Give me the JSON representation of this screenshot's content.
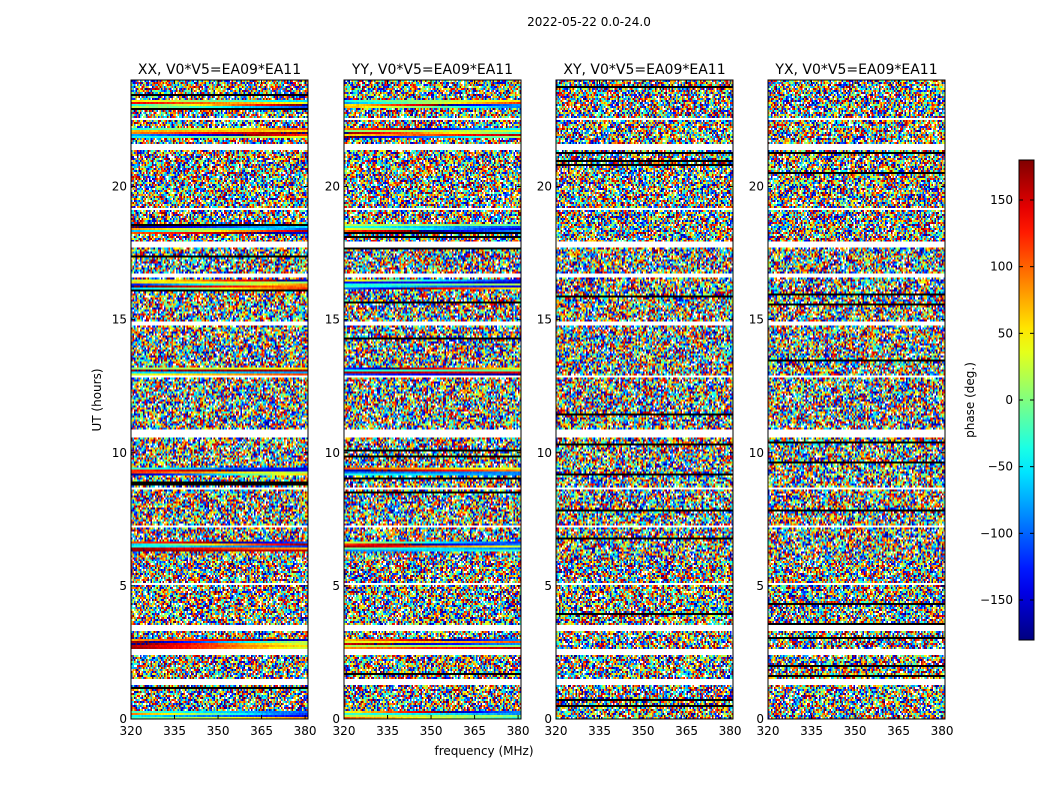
{
  "figure_title": "2022-05-22 0.0-24.0",
  "chart_data": {
    "type": "heatmap",
    "suptitle": "2022-05-22 0.0-24.0",
    "panels": [
      {
        "title": "XX, V0*V5=EA09*EA11",
        "product": "XX"
      },
      {
        "title": "YY, V0*V5=EA09*EA11",
        "product": "YY"
      },
      {
        "title": "XY, V0*V5=EA09*EA11",
        "product": "XY"
      },
      {
        "title": "YX, V0*V5=EA09*EA11",
        "product": "YX"
      }
    ],
    "xlabel": "frequency (MHz)",
    "ylabel": "UT (hours)",
    "xlim": [
      320,
      381
    ],
    "xticks": [
      320,
      335,
      350,
      365,
      380
    ],
    "ylim": [
      0,
      24
    ],
    "yticks": [
      0,
      5,
      10,
      15,
      20
    ],
    "colorbar": {
      "label": "phase (deg.)",
      "colormap": "jet",
      "range": [
        -180,
        180
      ],
      "ticks": [
        -150,
        -100,
        -50,
        0,
        50,
        100,
        150
      ],
      "tick_labels": [
        "−150",
        "−100",
        "−50",
        "0",
        "50",
        "100",
        "150"
      ]
    },
    "value_description": "random phase noise in most time rows; coherent phase gradients across frequency for XX and YY near UT 0.1, 2.8, 6.5, 9.3, 13.0, 16.3, 18.4, 22.0, 23.1",
    "coherent_rows_ut": [
      0.1,
      2.8,
      6.5,
      9.3,
      13.0,
      16.3,
      18.4,
      22.0,
      23.1
    ],
    "flagged_gaps_ut": [
      [
        1.3,
        1.5
      ],
      [
        2.4,
        2.6
      ],
      [
        3.3,
        3.5
      ],
      [
        5.0,
        5.1
      ],
      [
        7.2,
        7.3
      ],
      [
        8.6,
        8.7
      ],
      [
        10.6,
        10.9
      ],
      [
        12.8,
        12.9
      ],
      [
        14.8,
        14.9
      ],
      [
        16.6,
        16.7
      ],
      [
        17.7,
        17.9
      ],
      [
        19.1,
        19.2
      ],
      [
        21.4,
        21.6
      ],
      [
        22.5,
        22.6
      ]
    ]
  }
}
